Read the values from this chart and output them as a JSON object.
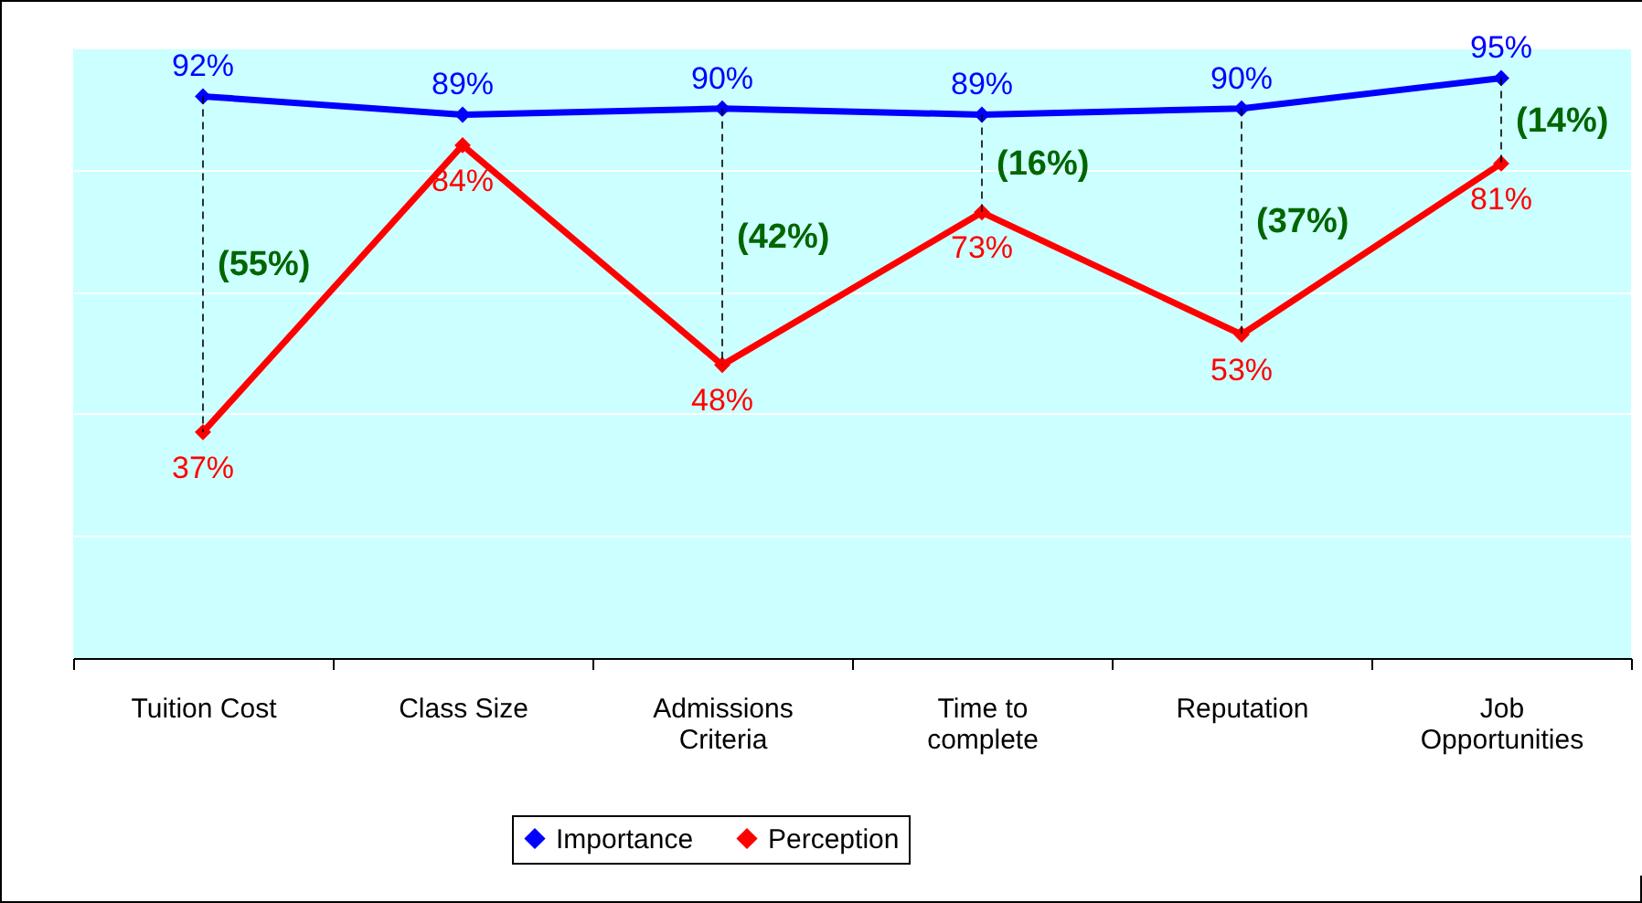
{
  "chart_data": {
    "type": "line",
    "categories": [
      "Tuition Cost",
      "Class Size",
      "Admissions Criteria",
      "Time to complete",
      "Reputation",
      "Job Opportunities"
    ],
    "series": [
      {
        "name": "Importance",
        "color": "#0000ff",
        "values": [
          92,
          89,
          90,
          89,
          90,
          95
        ],
        "value_labels": [
          "92%",
          "89%",
          "90%",
          "89%",
          "90%",
          "95%"
        ]
      },
      {
        "name": "Perception",
        "color": "#ff0000",
        "values": [
          37,
          84,
          48,
          73,
          53,
          81
        ],
        "value_labels": [
          "37%",
          "84%",
          "48%",
          "73%",
          "53%",
          "81%"
        ]
      }
    ],
    "ylim": [
      0,
      100
    ],
    "yticks": [
      {
        "value": 0,
        "label": null
      },
      {
        "value": 20,
        "label": null
      },
      {
        "value": 40,
        "label": null
      },
      {
        "value": 60,
        "label": null
      },
      {
        "value": 80,
        "label": null
      },
      {
        "value": 100,
        "label": null
      }
    ],
    "tick_labels": "x",
    "grid": "y",
    "legend": "bottom",
    "marker": "diamond",
    "line_style": "solid",
    "annotations": [
      "(55%)",
      "(42%)",
      "(16%)",
      "(37%)",
      "(14%)"
    ]
  }
}
